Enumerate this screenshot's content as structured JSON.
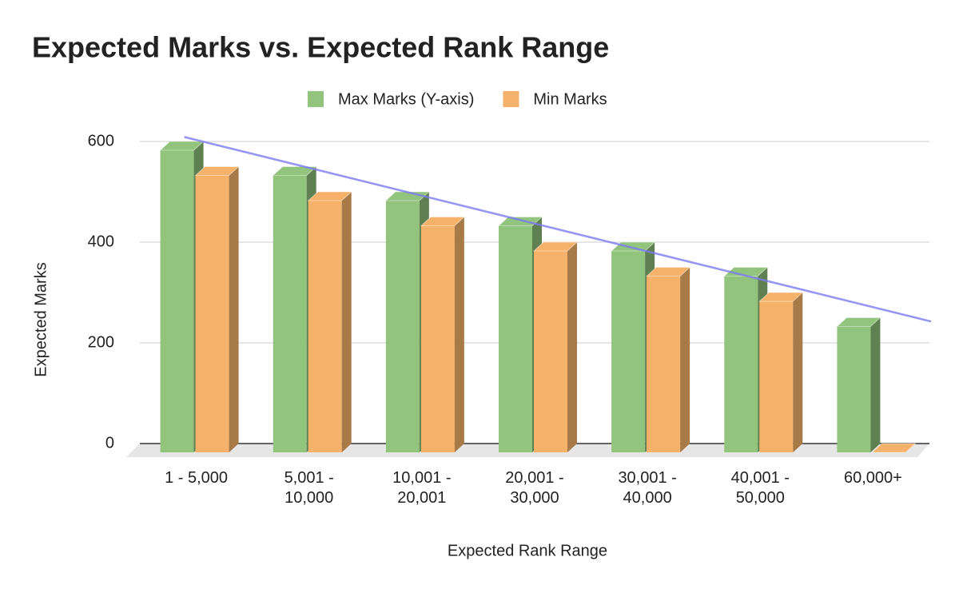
{
  "chart_data": {
    "type": "bar3d",
    "title": "Expected Marks vs. Expected Rank Range",
    "x_label": "Expected Rank Range",
    "y_label": "Expected Marks",
    "categories": [
      "1 - 5,000",
      "5,001 - 10,000",
      "10,001 - 20,001",
      "20,001 - 30,000",
      "30,001 - 40,000",
      "40,001 - 50,000",
      "60,000+"
    ],
    "series": [
      {
        "name": "Max Marks (Y-axis)",
        "color": "#93c47d",
        "side_color": "#5f8050",
        "values": [
          600,
          550,
          500,
          450,
          400,
          350,
          250
        ]
      },
      {
        "name": "Min Marks",
        "color": "#f6b26b",
        "side_color": "#a87a48",
        "values": [
          550,
          500,
          450,
          400,
          350,
          300,
          0
        ]
      }
    ],
    "ylim": [
      0,
      600
    ],
    "yticks": [
      0,
      200,
      400,
      600
    ],
    "grid": true,
    "legend": "top",
    "trendline": {
      "series": 0,
      "color": "#7b7bf0"
    }
  }
}
